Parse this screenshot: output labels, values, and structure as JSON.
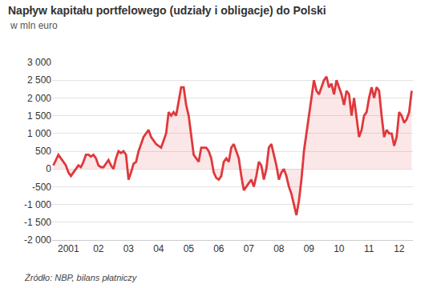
{
  "chart_data": {
    "type": "line",
    "title": "Napływ kapitału portfelowego (udziały i obligacje) do Polski",
    "subtitle": "w mln euro",
    "source": "Źródło: NBP, bilans płatniczy",
    "categories": [
      null,
      null,
      null,
      null,
      null,
      null,
      "2001",
      null,
      null,
      null,
      null,
      null,
      null,
      null,
      null,
      null,
      null,
      null,
      "02",
      null,
      null,
      null,
      null,
      null,
      null,
      null,
      null,
      null,
      null,
      null,
      "03",
      null,
      null,
      null,
      null,
      null,
      null,
      null,
      null,
      null,
      null,
      null,
      "04",
      null,
      null,
      null,
      null,
      null,
      null,
      null,
      null,
      null,
      null,
      null,
      "05",
      null,
      null,
      null,
      null,
      null,
      null,
      null,
      null,
      null,
      null,
      null,
      "06",
      null,
      null,
      null,
      null,
      null,
      null,
      null,
      null,
      null,
      null,
      null,
      "07",
      null,
      null,
      null,
      null,
      null,
      null,
      null,
      null,
      null,
      null,
      null,
      "08",
      null,
      null,
      null,
      null,
      null,
      null,
      null,
      null,
      null,
      null,
      null,
      "09",
      null,
      null,
      null,
      null,
      null,
      null,
      null,
      null,
      null,
      null,
      null,
      "10",
      null,
      null,
      null,
      null,
      null,
      null,
      null,
      null,
      null,
      null,
      null,
      "11",
      null,
      null,
      null,
      null,
      null,
      null,
      null,
      null,
      null,
      null,
      null,
      "12",
      null,
      null,
      null,
      null,
      null
    ],
    "series": [
      {
        "color": "#e0383c",
        "values": [
          100,
          250,
          400,
          300,
          200,
          100,
          -100,
          -200,
          -100,
          0,
          100,
          50,
          200,
          400,
          400,
          350,
          400,
          300,
          100,
          50,
          50,
          150,
          250,
          100,
          0,
          300,
          500,
          450,
          500,
          400,
          -300,
          -100,
          150,
          200,
          500,
          700,
          900,
          1000,
          1100,
          900,
          800,
          700,
          650,
          600,
          800,
          1000,
          1600,
          1500,
          1600,
          1500,
          1900,
          2300,
          2300,
          1800,
          1500,
          1000,
          400,
          300,
          200,
          600,
          600,
          600,
          500,
          300,
          -100,
          -250,
          -300,
          -200,
          200,
          300,
          200,
          600,
          700,
          500,
          300,
          -200,
          -600,
          -500,
          -400,
          -300,
          -500,
          -200,
          200,
          100,
          -300,
          0,
          600,
          700,
          400,
          100,
          -300,
          -100,
          0,
          -200,
          -500,
          -700,
          -1000,
          -1300,
          -900,
          -300,
          500,
          1000,
          1500,
          2000,
          2500,
          2200,
          2100,
          2300,
          2500,
          2600,
          2300,
          2400,
          2100,
          2500,
          2300,
          2100,
          1800,
          2200,
          2100,
          1500,
          2000,
          1500,
          900,
          1100,
          1500,
          1600,
          2000,
          2300,
          2000,
          2300,
          2200,
          1500,
          900,
          1100,
          1000,
          1000,
          650,
          900,
          1600,
          1500,
          1300,
          1400,
          1600,
          2200
        ]
      }
    ],
    "ylim": [
      -2000,
      3000
    ],
    "yticks": [
      {
        "value": -2000,
        "label": "-2 000"
      },
      {
        "value": -1500,
        "label": "-1 500"
      },
      {
        "value": -1000,
        "label": "-1 000"
      },
      -500,
      0,
      500,
      {
        "value": 1000,
        "label": "1 000"
      },
      {
        "value": 1500,
        "label": "1 500"
      },
      {
        "value": 2000,
        "label": "2 000"
      },
      {
        "value": 2500,
        "label": "2 500"
      },
      {
        "value": 3000,
        "label": "3 000"
      }
    ],
    "grid": true
  }
}
